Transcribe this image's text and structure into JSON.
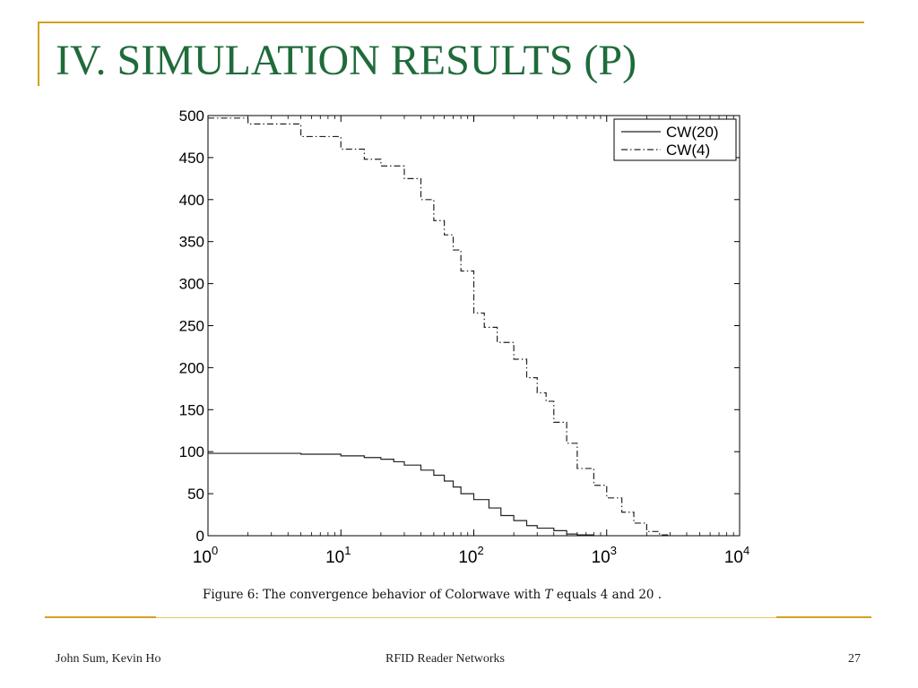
{
  "slide": {
    "title": "IV. SIMULATION RESULTS (P)",
    "footer_left": "John Sum, Kevin Ho",
    "footer_center": "RFID Reader Networks",
    "footer_right": "27"
  },
  "caption": {
    "prefix": "Figure 6:  The convergence behavior of Colorwave with ",
    "var": "T",
    "suffix": " equals 4 and 20 ."
  },
  "colors": {
    "title": "#1f6b3a",
    "accent": "#d4a020",
    "series": "#222222"
  },
  "chart_data": {
    "type": "line",
    "x_scale": "log",
    "xlim": [
      1,
      10000
    ],
    "ylim": [
      0,
      500
    ],
    "xlabel": "",
    "ylabel": "",
    "x_ticks": [
      {
        "value": 1,
        "base": "10",
        "exp": "0"
      },
      {
        "value": 10,
        "base": "10",
        "exp": "1"
      },
      {
        "value": 100,
        "base": "10",
        "exp": "2"
      },
      {
        "value": 1000,
        "base": "10",
        "exp": "3"
      },
      {
        "value": 10000,
        "base": "10",
        "exp": "4"
      }
    ],
    "y_ticks": [
      "0",
      "50",
      "100",
      "150",
      "200",
      "250",
      "300",
      "350",
      "400",
      "450",
      "500"
    ],
    "legend_position": "top-right",
    "series": [
      {
        "name": "CW(20)",
        "style": "solid",
        "x": [
          1,
          2,
          5,
          10,
          15,
          20,
          25,
          30,
          40,
          50,
          60,
          70,
          80,
          100,
          130,
          160,
          200,
          250,
          300,
          400,
          500,
          600,
          800
        ],
        "y": [
          98,
          98,
          97,
          95,
          93,
          91,
          88,
          84,
          78,
          72,
          65,
          58,
          50,
          43,
          33,
          24,
          18,
          12,
          9,
          6,
          2,
          1,
          0
        ]
      },
      {
        "name": "CW(4)",
        "style": "dashdot",
        "x": [
          1,
          2,
          5,
          10,
          15,
          20,
          30,
          40,
          50,
          60,
          70,
          80,
          100,
          120,
          150,
          200,
          250,
          300,
          350,
          400,
          500,
          600,
          800,
          1000,
          1300,
          1600,
          2000,
          2500,
          3000
        ],
        "y": [
          497,
          490,
          475,
          460,
          448,
          440,
          425,
          400,
          375,
          358,
          340,
          315,
          265,
          248,
          230,
          210,
          188,
          170,
          160,
          135,
          110,
          80,
          60,
          45,
          28,
          15,
          5,
          1,
          0
        ]
      }
    ]
  }
}
